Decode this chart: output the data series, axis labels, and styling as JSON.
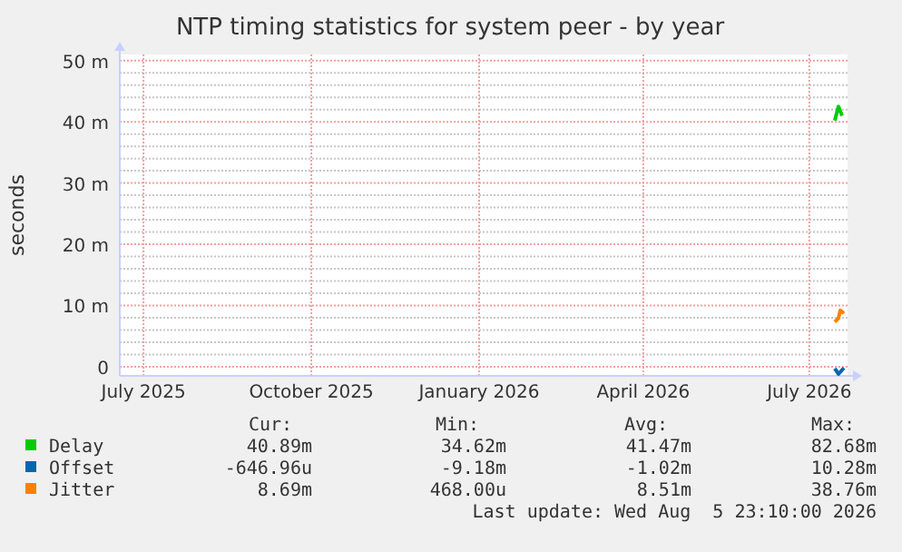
{
  "chart_data": {
    "type": "line",
    "title": "NTP timing statistics for system peer - by year",
    "ylabel": "seconds",
    "xlim": [
      "2025-07-03",
      "2026-08-06"
    ],
    "xticks": [
      {
        "value": "2025-07-16",
        "label": "July 2025"
      },
      {
        "value": "2025-10-16",
        "label": "October 2025"
      },
      {
        "value": "2026-01-16",
        "label": "January 2026"
      },
      {
        "value": "2026-04-16",
        "label": "April 2026"
      },
      {
        "value": "2026-07-16",
        "label": "July 2026"
      }
    ],
    "ylim": [
      -1.5,
      51
    ],
    "yticks": [
      0,
      {
        "value": 10,
        "label": "10 m"
      },
      {
        "value": 20,
        "label": "20 m"
      },
      {
        "value": 30,
        "label": "30 m"
      },
      {
        "value": 40,
        "label": "40 m"
      },
      {
        "value": 50,
        "label": "50 m"
      }
    ],
    "grid": true,
    "legend": "bottom",
    "series": [
      {
        "name": "Delay",
        "color": "#00cc00",
        "x": [
          "2026-07-30",
          "2026-08-01",
          "2026-08-03"
        ],
        "values": [
          40.2,
          42.5,
          41
        ]
      },
      {
        "name": "Offset",
        "color": "#0066b3",
        "x": [
          "2026-07-30",
          "2026-08-01",
          "2026-08-04"
        ],
        "values": [
          -0.3,
          -1.2,
          -0.2
        ]
      },
      {
        "name": "Jitter",
        "color": "#ff8000",
        "x": [
          "2026-07-30",
          "2026-08-01",
          "2026-08-02",
          "2026-08-04"
        ],
        "values": [
          7.3,
          7.9,
          9.2,
          8.7
        ]
      }
    ],
    "annotations": [
      "Cur:",
      "Min:",
      "Avg:",
      "Max:",
      "40.89m",
      "34.62m",
      "41.47m",
      "82.68m",
      "-646.96u",
      "-9.18m",
      "-1.02m",
      "10.28m",
      "8.69m",
      "468.00u",
      "8.51m",
      "38.76m",
      "Last update: Wed Aug  5 23:10:00 2026"
    ]
  }
}
